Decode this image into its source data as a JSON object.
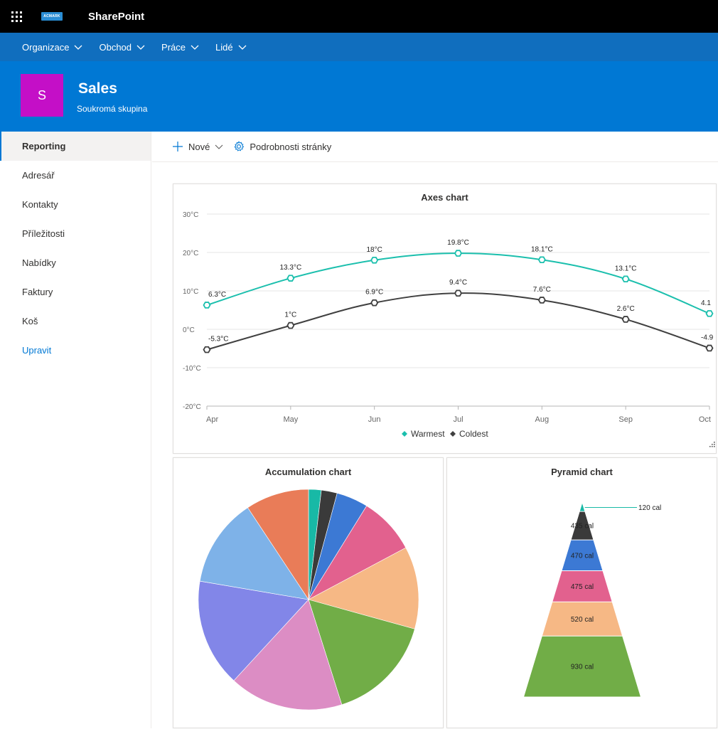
{
  "suite": {
    "app_name": "SharePoint",
    "logo_text": "ACMARK"
  },
  "hub_nav": [
    {
      "label": "Organizace"
    },
    {
      "label": "Obchod"
    },
    {
      "label": "Práce"
    },
    {
      "label": "Lidé"
    }
  ],
  "site": {
    "logo_letter": "S",
    "title": "Sales",
    "subtitle": "Soukromá skupina",
    "logo_color": "#c40fc7",
    "header_color": "#0078d4"
  },
  "left_nav": [
    {
      "label": "Reporting",
      "active": true
    },
    {
      "label": "Adresář"
    },
    {
      "label": "Kontakty"
    },
    {
      "label": "Příležitosti"
    },
    {
      "label": "Nabídky"
    },
    {
      "label": "Faktury"
    },
    {
      "label": "Koš"
    },
    {
      "label": "Upravit",
      "edit": true
    }
  ],
  "command_bar": {
    "new_label": "Nové",
    "page_details_label": "Podrobnosti stránky"
  },
  "chart_data": [
    {
      "type": "line",
      "title": "Axes chart",
      "categories": [
        "Apr",
        "May",
        "Jun",
        "Jul",
        "Aug",
        "Sep",
        "Oct"
      ],
      "ylim": [
        -20,
        30
      ],
      "y_ticks": [
        "30°C",
        "20°C",
        "10°C",
        "0°C",
        "-10°C",
        "-20°C"
      ],
      "y_tick_values": [
        30,
        20,
        10,
        0,
        -10,
        -20
      ],
      "grid": true,
      "legend": "bottom",
      "series": [
        {
          "name": "Warmest",
          "color": "#1bbfad",
          "values": [
            6.3,
            13.3,
            18,
            19.8,
            18.1,
            13.1,
            4.1
          ],
          "labels": [
            "6.3°C",
            "13.3°C",
            "18°C",
            "19.8°C",
            "18.1°C",
            "13.1°C",
            "4.1"
          ]
        },
        {
          "name": "Coldest",
          "color": "#404040",
          "values": [
            -5.3,
            1,
            6.9,
            9.4,
            7.6,
            2.6,
            -4.9
          ],
          "labels": [
            "-5.3°C",
            "1°C",
            "6.9°C",
            "9.4°C",
            "7.6°C",
            "2.6°C",
            "-4.9"
          ]
        }
      ]
    },
    {
      "type": "pie",
      "title": "Accumulation chart",
      "values": [
        2,
        2.5,
        5,
        9,
        13,
        17,
        18,
        17,
        14,
        10
      ],
      "colors": [
        "#18b9a6",
        "#3a3a3a",
        "#3c79d4",
        "#e2618e",
        "#f6b885",
        "#71ad47",
        "#dc8dc4",
        "#8286e8",
        "#7eb2e8",
        "#e97c58"
      ]
    },
    {
      "type": "pyramid",
      "title": "Pyramid chart",
      "values": [
        120,
        435,
        470,
        475,
        520,
        930
      ],
      "labels": [
        "120 cal",
        "435 cal",
        "470 cal",
        "475 cal",
        "520 cal",
        "930 cal"
      ],
      "colors": [
        "#18b9a6",
        "#3a3a3a",
        "#3c79d4",
        "#e2618e",
        "#f6b885",
        "#71ad47"
      ]
    }
  ]
}
